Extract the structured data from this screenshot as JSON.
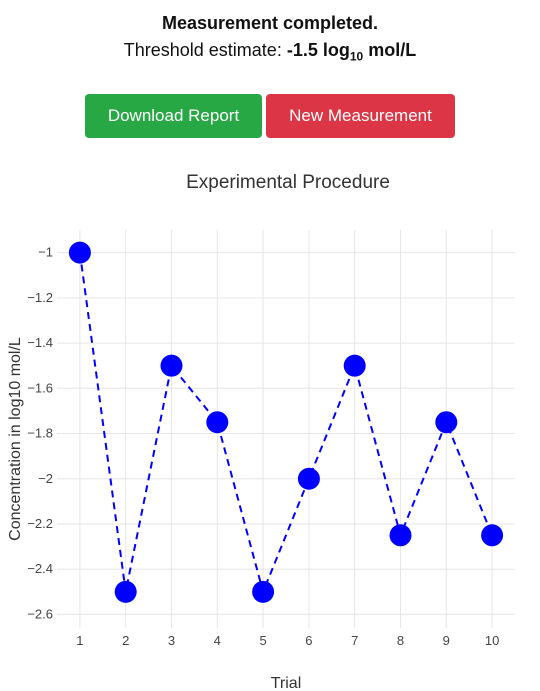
{
  "status": {
    "title": "Measurement completed.",
    "threshold_label": "Threshold estimate: ",
    "threshold_value": "-1.5",
    "threshold_unit_prefix": "log",
    "threshold_unit_sub": "10",
    "threshold_unit_suffix": " mol/L"
  },
  "actions": {
    "download_label": "Download Report",
    "new_label": "New Measurement",
    "download_color": "#28a745",
    "new_color": "#dc3545"
  },
  "chart_data": {
    "type": "line",
    "title": "Experimental Procedure",
    "xlabel": "Trial",
    "ylabel": "Concentration in log10 mol/L",
    "x": [
      1,
      2,
      3,
      4,
      5,
      6,
      7,
      8,
      9,
      10
    ],
    "series": [
      {
        "values": [
          -1,
          -2.5,
          -1.5,
          -1.75,
          -2.5,
          -2,
          -1.5,
          -2.25,
          -1.75,
          -2.25
        ],
        "color": "#0000ff",
        "line_style": "dashed",
        "markers": true
      }
    ],
    "xticks": [
      "1",
      "2",
      "3",
      "4",
      "5",
      "6",
      "7",
      "8",
      "9",
      "10"
    ],
    "yticks": [
      "−1",
      "−1.2",
      "−1.4",
      "−1.6",
      "−1.8",
      "−2",
      "−2.2",
      "−2.4",
      "−2.6"
    ],
    "ytick_values": [
      -1,
      -1.2,
      -1.4,
      -1.6,
      -1.8,
      -2,
      -2.2,
      -2.4,
      -2.6
    ],
    "xlim": [
      0.5,
      10.5
    ],
    "ylim": [
      -2.66,
      -0.9
    ],
    "grid": true,
    "legend": "none"
  }
}
